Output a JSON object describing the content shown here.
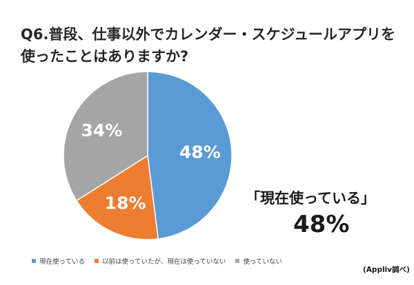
{
  "title_lines": [
    "Q6.普段、仕事以外でカレンダー・スケジュールアプリを",
    "使ったことはありますか?"
  ],
  "callout": {
    "label": "「現在使っている」",
    "value": "48%"
  },
  "source": "(Appliv調べ)",
  "chart_data": {
    "type": "pie",
    "categories": [
      "現在使っている",
      "以前は使っていたが、現在は使っていない",
      "使っていない"
    ],
    "values": [
      48,
      18,
      34
    ],
    "data_labels": [
      "48%",
      "18%",
      "34%"
    ],
    "colors": [
      "#5b9bd5",
      "#ed7d31",
      "#a5a5a5"
    ],
    "label_color": "#ffffff",
    "legend_position": "bottom-left",
    "start_angle": "12 o'clock",
    "direction": "clockwise"
  }
}
